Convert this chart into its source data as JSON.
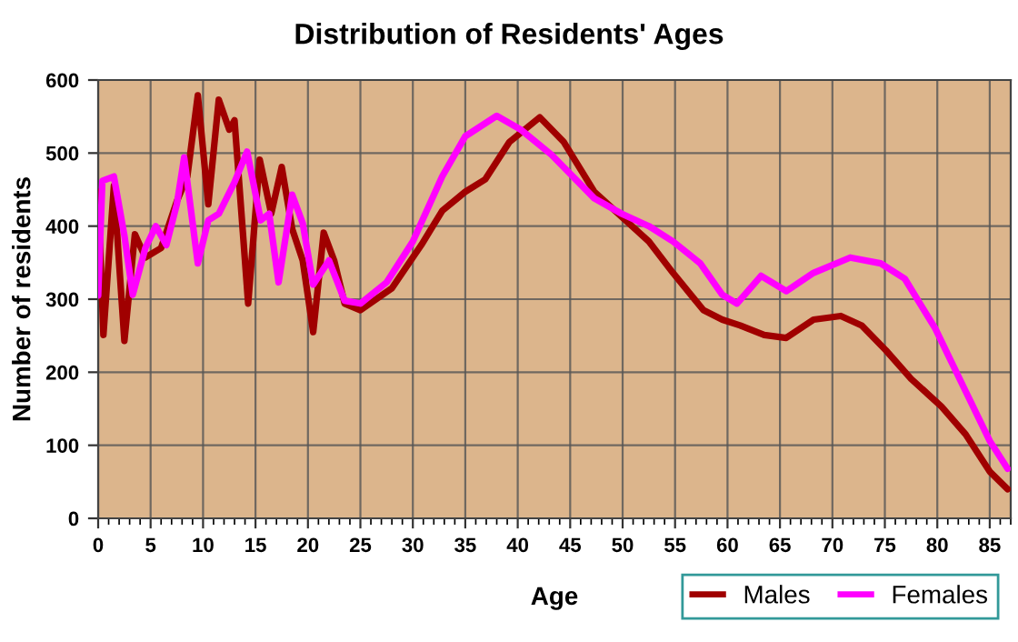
{
  "chart_data": {
    "type": "line",
    "title": "Distribution of Residents' Ages",
    "xlabel": "Age",
    "ylabel": "Number of residents",
    "xlim": [
      0,
      87
    ],
    "xticks": [
      0,
      5,
      10,
      15,
      20,
      25,
      30,
      35,
      40,
      45,
      50,
      55,
      60,
      65,
      70,
      75,
      80,
      85
    ],
    "ylim": [
      0,
      600
    ],
    "yticks": [
      0,
      100,
      200,
      300,
      400,
      500,
      600
    ],
    "grid": true,
    "legend": "bottom right",
    "marker": "none",
    "line_style": "solid",
    "series": [
      {
        "name": "Males",
        "color": "#a00000",
        "x": [
          0,
          0.5,
          1.5,
          2.5,
          3.5,
          4.5,
          6,
          7.5,
          8.5,
          9.5,
          10.5,
          11.5,
          12.5,
          13,
          14.3,
          15.4,
          16.5,
          17.5,
          18.5,
          19.5,
          20.5,
          21.5,
          22.5,
          23.5,
          25,
          28,
          30.8,
          32.8,
          35,
          36.9,
          39.2,
          42.1,
          44.4,
          47.3,
          49.9,
          52.5,
          54.8,
          57.7,
          59.5,
          61.2,
          63.5,
          65.6,
          68.2,
          70.8,
          72.8,
          75.1,
          77.5,
          80.4,
          82.7,
          85,
          86.7
        ],
        "values": [
          447,
          251,
          455,
          243,
          389,
          357,
          370,
          434,
          468,
          579,
          430,
          573,
          532,
          545,
          294,
          491,
          417,
          481,
          396,
          353,
          255,
          391,
          353,
          294,
          285,
          315,
          374,
          421,
          447,
          464,
          515,
          549,
          515,
          447,
          413,
          379,
          336,
          285,
          272,
          264,
          251,
          247,
          272,
          277,
          264,
          230,
          191,
          153,
          115,
          64,
          40
        ]
      },
      {
        "name": "Females",
        "color": "#ff00ff",
        "x": [
          0,
          0.4,
          1.5,
          2.5,
          3.3,
          4.5,
          5.5,
          6.5,
          7.5,
          8.2,
          9.5,
          10.5,
          11.5,
          13,
          14.2,
          15.5,
          16.3,
          17.2,
          18.5,
          19.5,
          20.5,
          22,
          23.5,
          25,
          27.5,
          30,
          32.8,
          35,
          38,
          40.3,
          43.2,
          47.3,
          49.9,
          52.5,
          54.8,
          57.4,
          59.5,
          60.9,
          63.2,
          65.6,
          68.2,
          71.7,
          74.6,
          76.9,
          79.8,
          82.7,
          85,
          86.7
        ],
        "values": [
          305,
          462,
          468,
          387,
          306,
          370,
          400,
          374,
          430,
          494,
          349,
          408,
          417,
          460,
          502,
          408,
          417,
          323,
          443,
          404,
          320,
          353,
          298,
          294,
          323,
          379,
          468,
          523,
          551,
          532,
          498,
          438,
          417,
          400,
          379,
          349,
          306,
          294,
          332,
          311,
          336,
          357,
          349,
          328,
          260,
          174,
          106,
          68
        ]
      }
    ]
  }
}
